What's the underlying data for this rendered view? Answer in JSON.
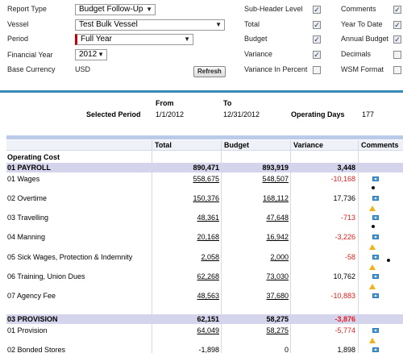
{
  "filters": {
    "report_type_label": "Report Type",
    "report_type_value": "Budget Follow-Up",
    "vessel_label": "Vessel",
    "vessel_value": "Test Bulk Vessel",
    "period_label": "Period",
    "period_value": "Full Year",
    "financial_year_label": "Financial Year",
    "financial_year_value": "2012",
    "base_currency_label": "Base Currency",
    "base_currency_value": "USD",
    "refresh_label": "Refresh",
    "options_mid": [
      {
        "label": "Sub-Header Level",
        "checked": true
      },
      {
        "label": "Total",
        "checked": true
      },
      {
        "label": "Budget",
        "checked": true
      },
      {
        "label": "Variance",
        "checked": true
      },
      {
        "label": "Variance In Percent",
        "checked": false
      }
    ],
    "options_right": [
      {
        "label": "Comments",
        "checked": true
      },
      {
        "label": "Year To Date",
        "checked": true
      },
      {
        "label": "Annual Budget",
        "checked": true
      },
      {
        "label": "Decimals",
        "checked": false
      },
      {
        "label": "WSM Format",
        "checked": false
      }
    ]
  },
  "period": {
    "selected_label": "Selected Period",
    "from_label": "From",
    "from_value": "1/1/2012",
    "to_label": "To",
    "to_value": "12/31/2012",
    "operating_days_label": "Operating Days",
    "operating_days_value": "177"
  },
  "grid": {
    "headers": {
      "total": "Total",
      "budget": "Budget",
      "variance": "Variance",
      "comments": "Comments"
    },
    "rows": [
      {
        "type": "title",
        "name": "Operating Cost"
      },
      {
        "type": "section",
        "name": "01 PAYROLL",
        "total": "890,471",
        "budget": "893,919",
        "variance": "3,448",
        "neg": false
      },
      {
        "type": "item",
        "name": "01 Wages",
        "total": "558,675",
        "budget": "548,507",
        "variance": "-10,168",
        "neg": true,
        "icons": [
          "info",
          "dot"
        ]
      },
      {
        "type": "item",
        "name": "02 Overtime",
        "total": "150,376",
        "budget": "168,112",
        "variance": "17,736",
        "neg": false,
        "icons": [
          "info",
          "warn"
        ]
      },
      {
        "type": "item",
        "name": "03 Travelling",
        "total": "48,361",
        "budget": "47,648",
        "variance": "-713",
        "neg": true,
        "icons": [
          "info",
          "dot"
        ]
      },
      {
        "type": "item",
        "name": "04 Manning",
        "total": "20,168",
        "budget": "16,942",
        "variance": "-3,226",
        "neg": true,
        "icons": [
          "info",
          "warn"
        ]
      },
      {
        "type": "item",
        "name": "05 Sick Wages, Protection & Indemnity",
        "total": "2,058",
        "budget": "2,000",
        "variance": "-58",
        "neg": true,
        "icons": [
          "info",
          "warn",
          "dot"
        ]
      },
      {
        "type": "item",
        "name": "06 Training, Union Dues",
        "total": "62,268",
        "budget": "73,030",
        "variance": "10,762",
        "neg": false,
        "icons": [
          "info",
          "warn"
        ]
      },
      {
        "type": "item",
        "name": "07 Agency Fee",
        "total": "48,563",
        "budget": "37,680",
        "variance": "-10,883",
        "neg": true,
        "icons": [
          "info"
        ]
      },
      {
        "type": "section",
        "name": "03 PROVISION",
        "total": "62,151",
        "budget": "58,275",
        "variance": "-3,876",
        "neg": true
      },
      {
        "type": "item",
        "name": "01 Provision",
        "total": "64,049",
        "budget": "58,275",
        "variance": "-5,774",
        "neg": true,
        "icons": [
          "info",
          "warn"
        ]
      },
      {
        "type": "item",
        "name": "02 Bonded Stores",
        "total": "-1,898",
        "budget": "0",
        "variance": "1,898",
        "neg": false,
        "icons": [
          "info"
        ]
      }
    ]
  }
}
